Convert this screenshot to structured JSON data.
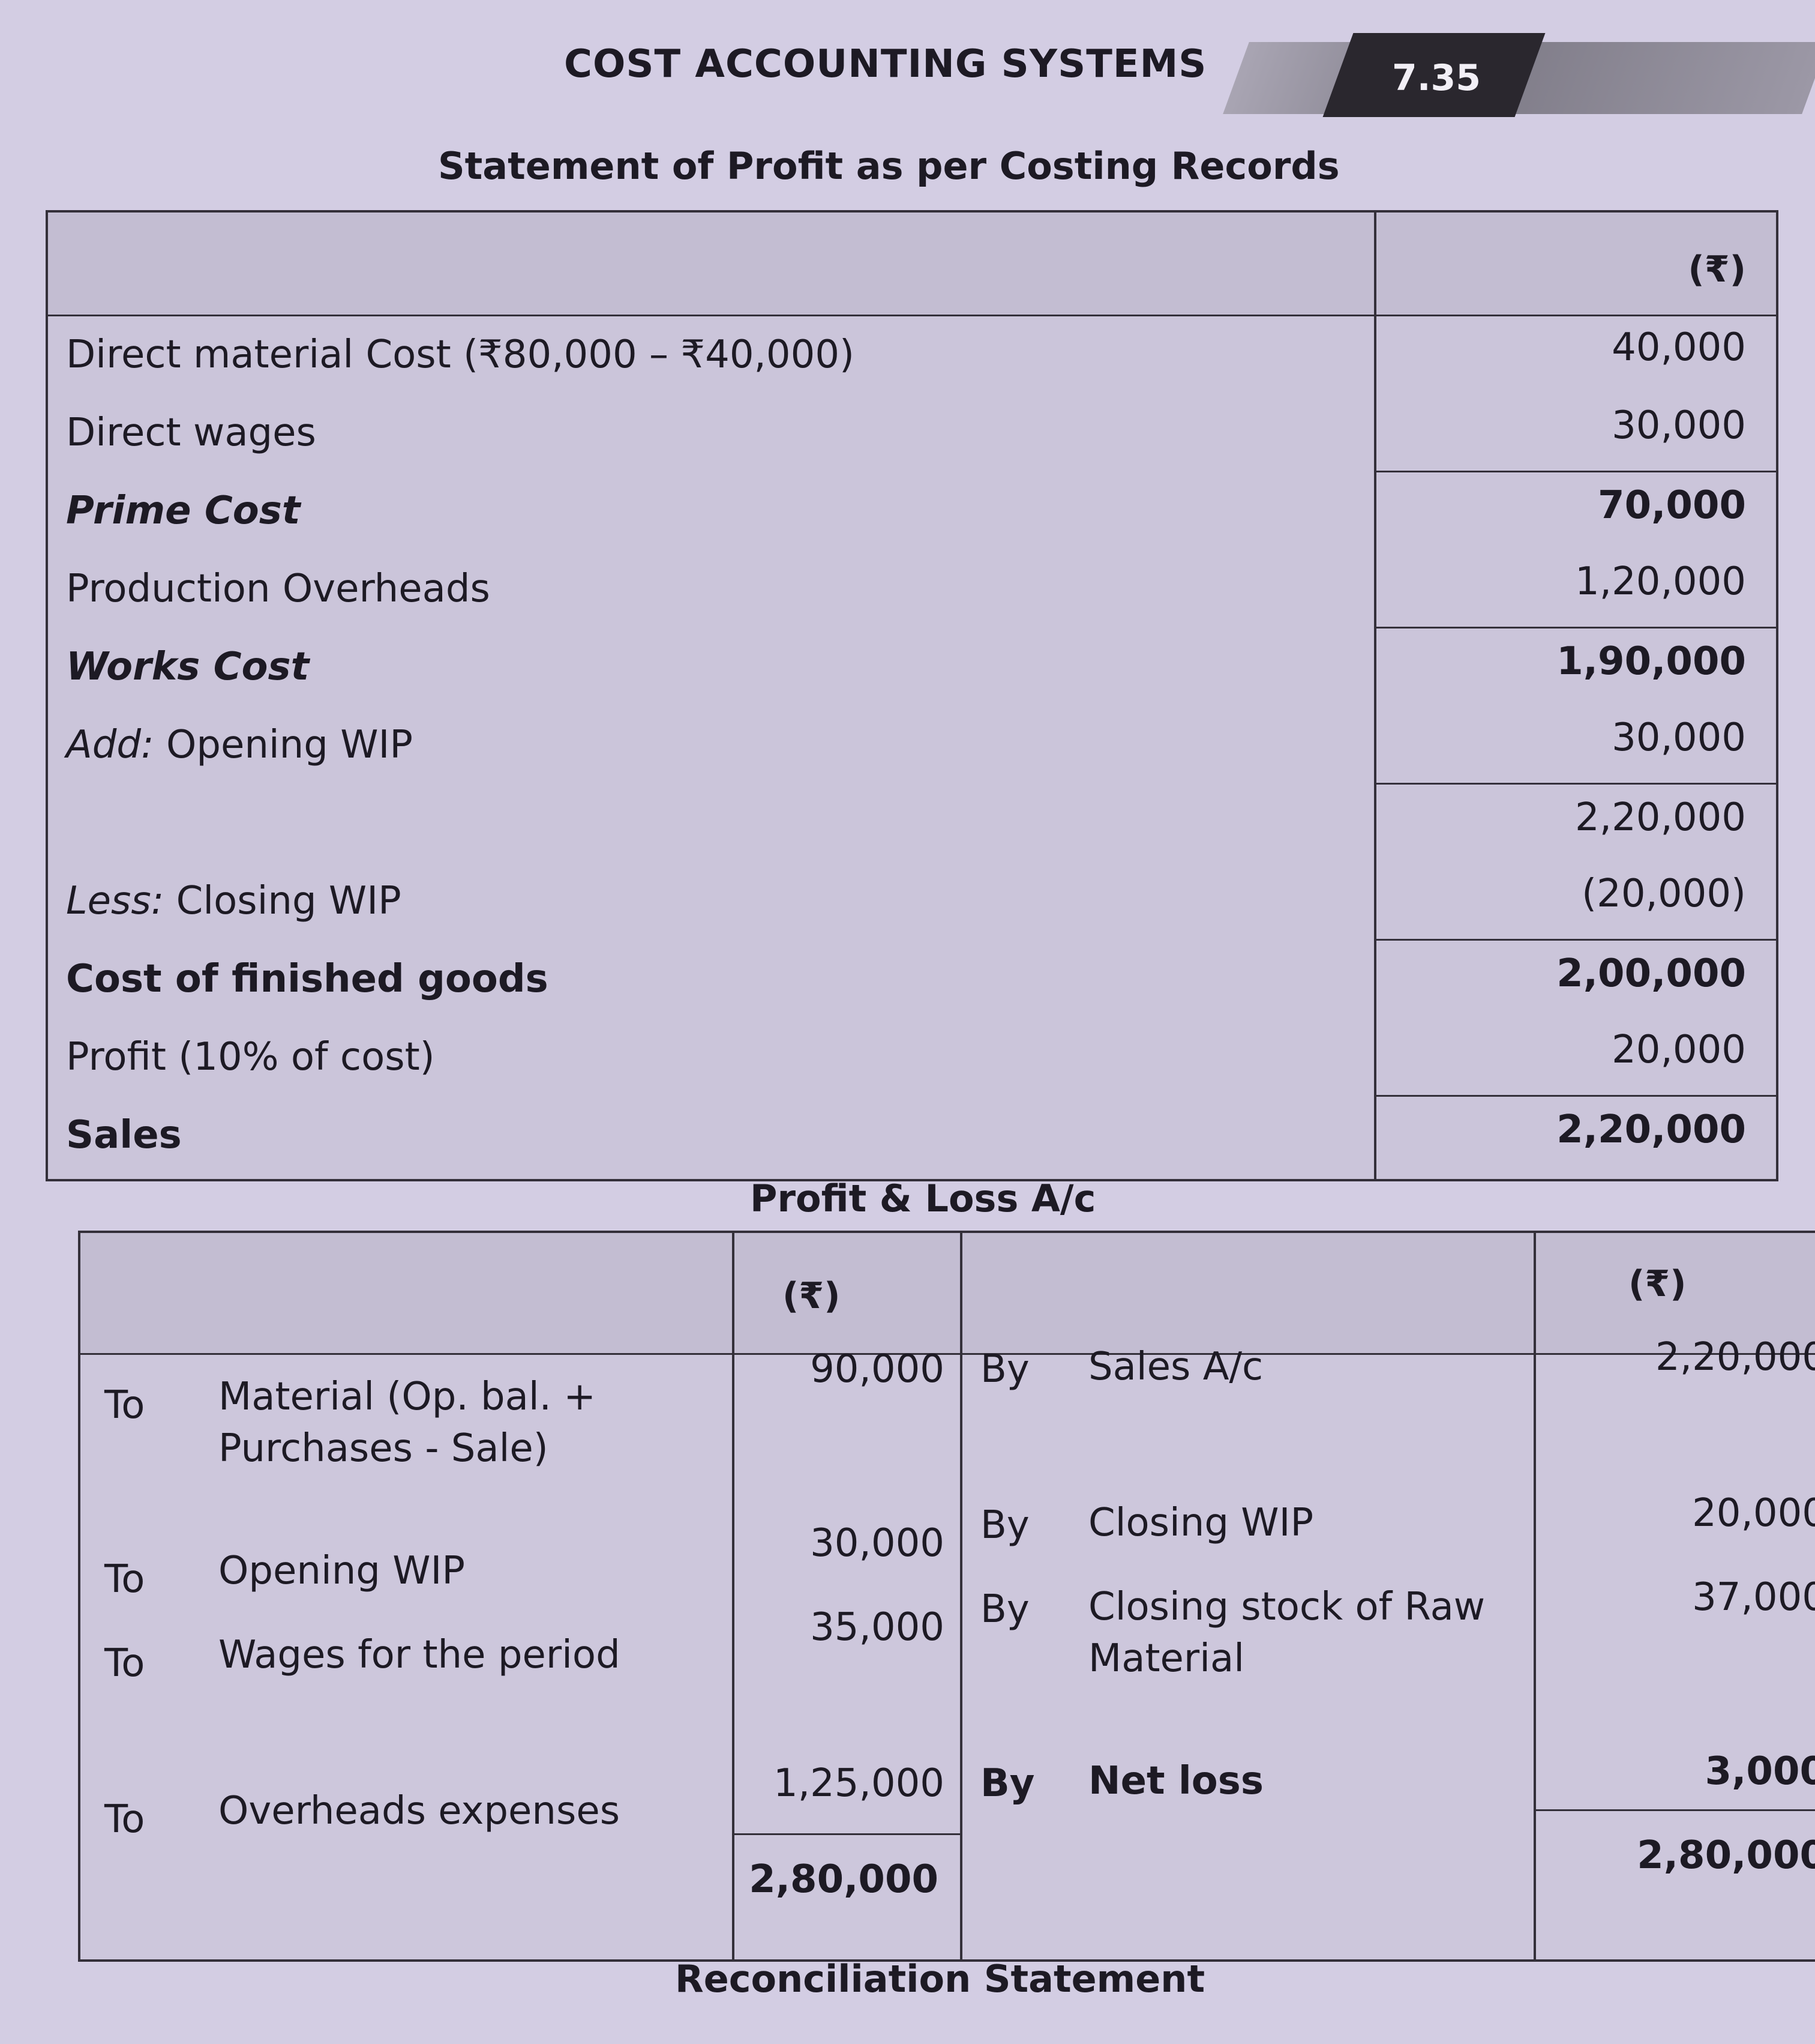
{
  "header": {
    "running_title": "COST ACCOUNTING SYSTEMS",
    "page_number": "7.35"
  },
  "costing_statement": {
    "title": "Statement of Profit as per Costing Records",
    "amount_header": "(₹)",
    "rows": [
      {
        "prefix": "",
        "label": "Direct material Cost (₹80,000 – ₹40,000)",
        "amount": "40,000",
        "style": "normal",
        "rule": false
      },
      {
        "prefix": "",
        "label": "Direct wages",
        "amount": "30,000",
        "style": "normal",
        "rule": false
      },
      {
        "prefix": "",
        "label": "Prime Cost",
        "amount": "70,000",
        "style": "bolditalic",
        "rule": true
      },
      {
        "prefix": "",
        "label": "Production Overheads",
        "amount": "1,20,000",
        "style": "normal",
        "rule": false
      },
      {
        "prefix": "",
        "label": "Works Cost",
        "amount": "1,90,000",
        "style": "bolditalic",
        "rule": true
      },
      {
        "prefix": "Add:",
        "label": " Opening WIP",
        "amount": "30,000",
        "style": "normal",
        "rule": false
      },
      {
        "prefix": "",
        "label": "",
        "amount": "2,20,000",
        "style": "normal",
        "rule": true
      },
      {
        "prefix": "Less:",
        "label": " Closing WIP",
        "amount": "(20,000)",
        "style": "normal",
        "rule": false
      },
      {
        "prefix": "",
        "label": "Cost of finished goods",
        "amount": "2,00,000",
        "style": "bold",
        "rule": true
      },
      {
        "prefix": "",
        "label": "Profit (10% of cost)",
        "amount": "20,000",
        "style": "normal",
        "rule": false
      },
      {
        "prefix": "",
        "label": "Sales",
        "amount": "2,20,000",
        "style": "bold",
        "rule": true
      }
    ]
  },
  "profit_loss": {
    "title": "Profit & Loss A/c",
    "debit_header": "(₹)",
    "credit_header": "(₹)",
    "debit": [
      {
        "prefix": "To",
        "label": "Material (Op. bal. + Purchases - Sale)",
        "amount": "90,000"
      },
      {
        "prefix": "To",
        "label": "Opening WIP",
        "amount": "30,000"
      },
      {
        "prefix": "To",
        "label": "Wages for the period",
        "amount": "35,000"
      },
      {
        "prefix": "To",
        "label": "Overheads expenses",
        "amount": "1,25,000"
      }
    ],
    "debit_total": "2,80,000",
    "credit": [
      {
        "prefix": "By",
        "label": "Sales A/c",
        "amount": "2,20,000",
        "bold": false
      },
      {
        "prefix": "By",
        "label": "Closing WIP",
        "amount": "20,000",
        "bold": false
      },
      {
        "prefix": "By",
        "label": "Closing stock of Raw Material",
        "amount": "37,000",
        "bold": false
      },
      {
        "prefix": "By",
        "label": "Net loss",
        "amount": "3,000",
        "bold": true
      }
    ],
    "credit_total": "2,80,000"
  },
  "reconciliation": {
    "title": "Reconciliation Statement"
  }
}
